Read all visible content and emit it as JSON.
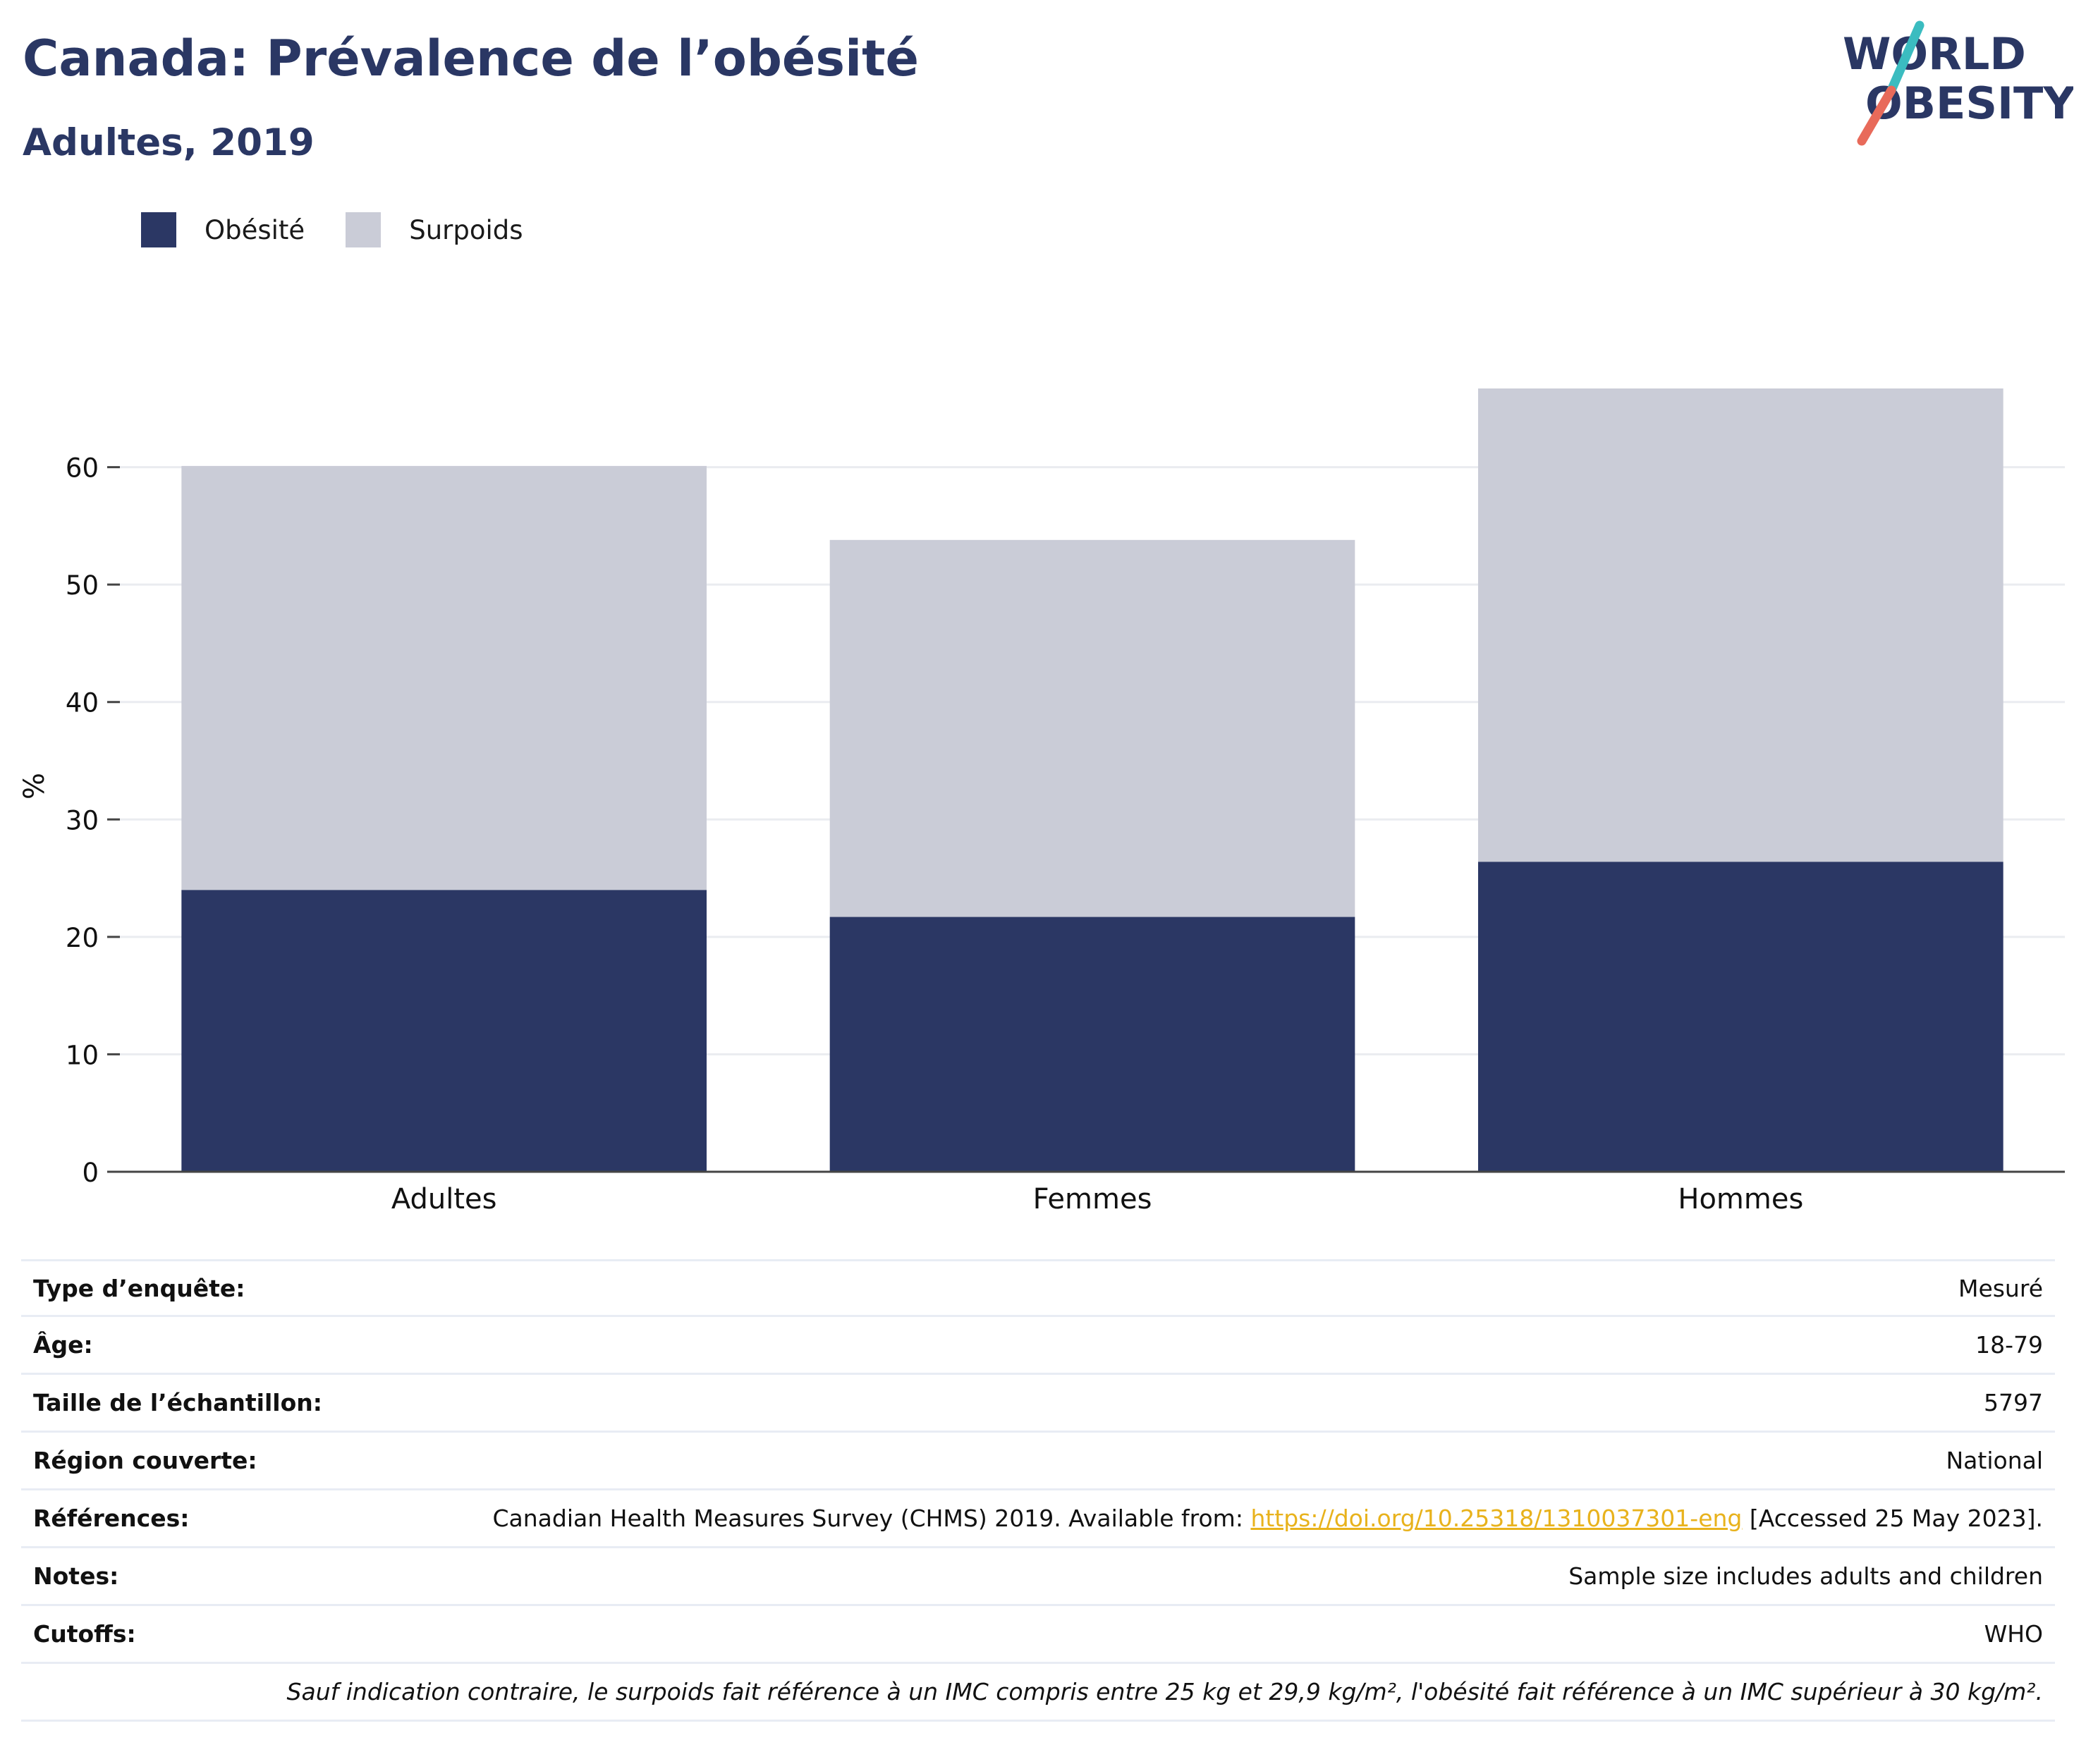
{
  "header": {
    "title": "Canada: Prévalence de l’obésité",
    "subtitle": "Adultes, 2019"
  },
  "logo": {
    "line1": "WORLD",
    "line2": "OBESITY",
    "accent_teal": "#3bbcc0",
    "accent_coral": "#e86a5a",
    "text_color": "#2a3764"
  },
  "colors": {
    "obesite": "#2b3764",
    "surpoids": "#caccd7",
    "grid": "#eaecf0",
    "axis": "#444444"
  },
  "chart_data": {
    "type": "bar",
    "stacked": true,
    "categories": [
      "Adultes",
      "Femmes",
      "Hommes"
    ],
    "series": [
      {
        "name": "Obésité",
        "values": [
          24.0,
          21.7,
          26.4
        ]
      },
      {
        "name": "Surpoids",
        "values": [
          36.1,
          32.1,
          40.3
        ]
      }
    ],
    "ylabel": "%",
    "ylim": [
      0,
      70
    ],
    "yticks": [
      0,
      10,
      20,
      30,
      40,
      50,
      60
    ],
    "grid": true,
    "legend_position": "top-left"
  },
  "info": {
    "rows": [
      {
        "label": "Type d’enquête:",
        "value": "Mesuré"
      },
      {
        "label": "Âge:",
        "value": "18-79"
      },
      {
        "label": "Taille de l’échantillon:",
        "value": "5797"
      },
      {
        "label": "Région couverte:",
        "value": "National"
      }
    ],
    "references": {
      "label": "Références:",
      "text_before": "Canadian Health Measures Survey (CHMS) 2019. Available from: ",
      "link": "https://doi.org/10.25318/1310037301-eng",
      "text_after": " [Accessed 25 May 2023]."
    },
    "rows2": [
      {
        "label": "Notes:",
        "value": "Sample size includes adults and children"
      },
      {
        "label": "Cutoffs:",
        "value": "WHO"
      }
    ],
    "footnote": "Sauf indication contraire, le surpoids fait référence à un IMC compris entre 25 kg et 29,9 kg/m², l'obésité fait référence à un IMC supérieur à 30 kg/m²."
  }
}
